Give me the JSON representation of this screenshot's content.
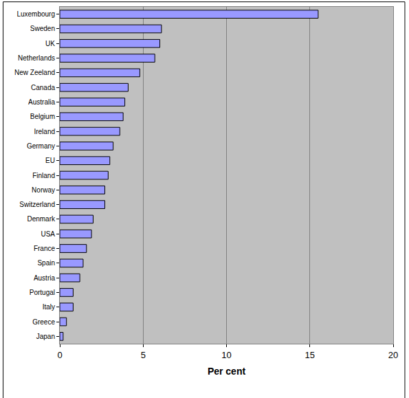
{
  "chart_data": {
    "type": "bar",
    "orientation": "horizontal",
    "categories": [
      "Luxembourg",
      "Sweden",
      "UK",
      "Netherlands",
      "New Zeeland",
      "Canada",
      "Australia",
      "Belgium",
      "Ireland",
      "Germany",
      "EU",
      "Finland",
      "Norway",
      "Switzerland",
      "Denmark",
      "USA",
      "France",
      "Spain",
      "Austria",
      "Portugal",
      "Italy",
      "Greece",
      "Japan"
    ],
    "values": [
      15.5,
      6.1,
      6.0,
      5.7,
      4.8,
      4.1,
      3.9,
      3.8,
      3.6,
      3.2,
      3.0,
      2.9,
      2.7,
      2.7,
      2.0,
      1.9,
      1.6,
      1.4,
      1.2,
      0.8,
      0.8,
      0.4,
      0.2
    ],
    "color": "#9999ff",
    "x_label": "Per cent",
    "xlim": [
      0,
      20
    ],
    "xticks": [
      0,
      5,
      10,
      15,
      20
    ],
    "grid": true
  }
}
